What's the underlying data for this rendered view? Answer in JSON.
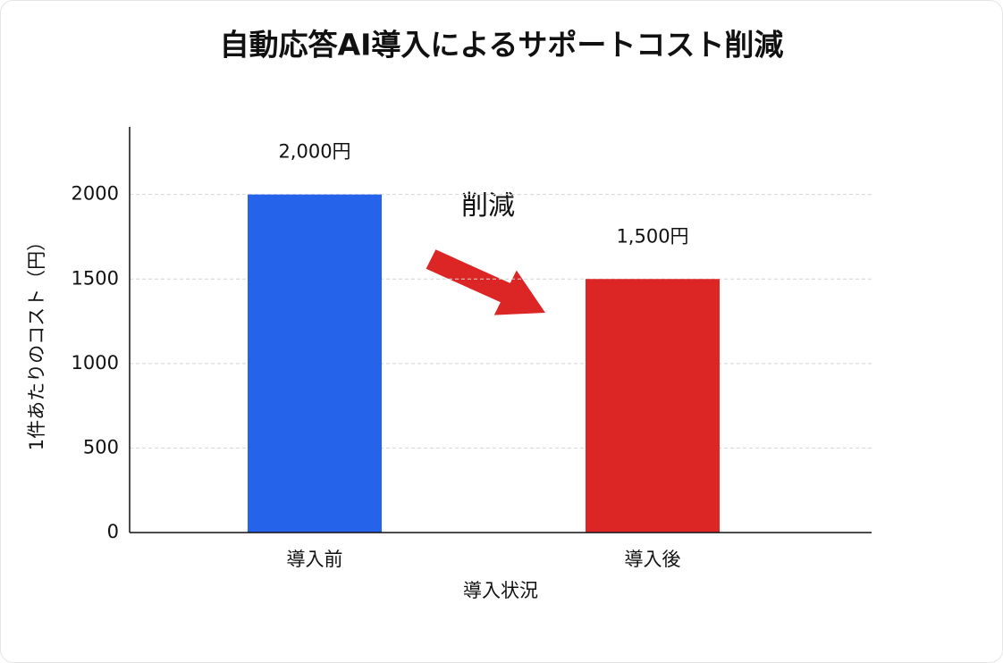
{
  "chart_data": {
    "type": "bar",
    "title": "自動応答AI導入によるサポートコスト削減",
    "x_label": "導入状況",
    "y_label": "1件あたりのコスト（円）",
    "categories": [
      "導入前",
      "導入後"
    ],
    "values": [
      2000,
      1500
    ],
    "value_labels": [
      "2,000円",
      "1,500円"
    ],
    "colors": [
      "#2563eb",
      "#dc2626"
    ],
    "ylim": [
      0,
      2400
    ],
    "yticks": [
      0,
      500,
      1000,
      1500,
      2000
    ],
    "grid": true,
    "annotation": "削減"
  }
}
